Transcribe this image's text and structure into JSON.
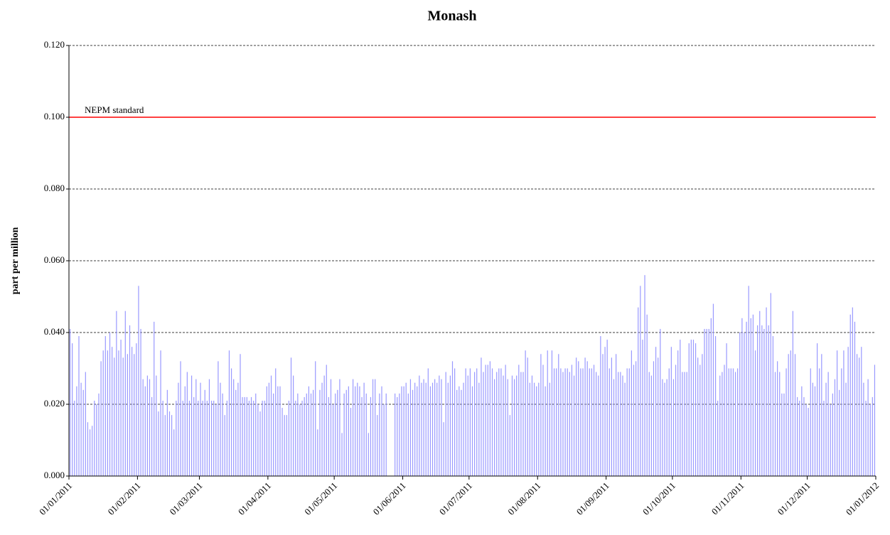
{
  "chart_data": {
    "type": "bar",
    "title": "Monash",
    "y_label": "part per million",
    "color": "#9999ff",
    "x": [
      "01/01/2011",
      "02/01/2011",
      "03/01/2011",
      "04/01/2011",
      "05/01/2011",
      "06/01/2011",
      "07/01/2011",
      "08/01/2011",
      "09/01/2011",
      "10/01/2011",
      "11/01/2011",
      "12/01/2011",
      "13/01/2011",
      "14/01/2011",
      "15/01/2011",
      "16/01/2011",
      "17/01/2011",
      "18/01/2011",
      "19/01/2011",
      "20/01/2011",
      "21/01/2011",
      "22/01/2011",
      "23/01/2011",
      "24/01/2011",
      "25/01/2011",
      "26/01/2011",
      "27/01/2011",
      "28/01/2011",
      "29/01/2011",
      "30/01/2011",
      "31/01/2011",
      "01/02/2011",
      "02/02/2011",
      "03/02/2011",
      "04/02/2011",
      "05/02/2011",
      "06/02/2011",
      "07/02/2011",
      "08/02/2011",
      "09/02/2011",
      "10/02/2011",
      "11/02/2011",
      "12/02/2011",
      "13/02/2011",
      "14/02/2011",
      "15/02/2011",
      "16/02/2011",
      "17/02/2011",
      "18/02/2011",
      "19/02/2011",
      "20/02/2011",
      "21/02/2011",
      "22/02/2011",
      "23/02/2011",
      "24/02/2011",
      "25/02/2011",
      "26/02/2011",
      "27/02/2011",
      "28/02/2011",
      "01/03/2011",
      "02/03/2011",
      "03/03/2011",
      "04/03/2011",
      "05/03/2011",
      "06/03/2011",
      "07/03/2011",
      "08/03/2011",
      "09/03/2011",
      "10/03/2011",
      "11/03/2011",
      "12/03/2011",
      "13/03/2011",
      "14/03/2011",
      "15/03/2011",
      "16/03/2011",
      "17/03/2011",
      "18/03/2011",
      "19/03/2011",
      "20/03/2011",
      "21/03/2011",
      "22/03/2011",
      "23/03/2011",
      "24/03/2011",
      "25/03/2011",
      "26/03/2011",
      "27/03/2011",
      "28/03/2011",
      "29/03/2011",
      "30/03/2011",
      "31/03/2011",
      "01/04/2011",
      "02/04/2011",
      "03/04/2011",
      "04/04/2011",
      "05/04/2011",
      "06/04/2011",
      "07/04/2011",
      "08/04/2011",
      "09/04/2011",
      "10/04/2011",
      "11/04/2011",
      "12/04/2011",
      "13/04/2011",
      "14/04/2011",
      "15/04/2011",
      "16/04/2011",
      "17/04/2011",
      "18/04/2011",
      "19/04/2011",
      "20/04/2011",
      "21/04/2011",
      "22/04/2011",
      "23/04/2011",
      "24/04/2011",
      "25/04/2011",
      "26/04/2011",
      "27/04/2011",
      "28/04/2011",
      "29/04/2011",
      "30/04/2011",
      "01/05/2011",
      "02/05/2011",
      "03/05/2011",
      "04/05/2011",
      "05/05/2011",
      "06/05/2011",
      "07/05/2011",
      "08/05/2011",
      "09/05/2011",
      "10/05/2011",
      "11/05/2011",
      "12/05/2011",
      "13/05/2011",
      "14/05/2011",
      "15/05/2011",
      "16/05/2011",
      "17/05/2011",
      "18/05/2011",
      "19/05/2011",
      "20/05/2011",
      "21/05/2011",
      "22/05/2011",
      "23/05/2011",
      "24/05/2011",
      "25/05/2011",
      "26/05/2011",
      "27/05/2011",
      "28/05/2011",
      "29/05/2011",
      "30/05/2011",
      "31/05/2011",
      "01/06/2011",
      "02/06/2011",
      "03/06/2011",
      "04/06/2011",
      "05/06/2011",
      "06/06/2011",
      "07/06/2011",
      "08/06/2011",
      "09/06/2011",
      "10/06/2011",
      "11/06/2011",
      "12/06/2011",
      "13/06/2011",
      "14/06/2011",
      "15/06/2011",
      "16/06/2011",
      "17/06/2011",
      "18/06/2011",
      "19/06/2011",
      "20/06/2011",
      "21/06/2011",
      "22/06/2011",
      "23/06/2011",
      "24/06/2011",
      "25/06/2011",
      "26/06/2011",
      "27/06/2011",
      "28/06/2011",
      "29/06/2011",
      "30/06/2011",
      "01/07/2011",
      "02/07/2011",
      "03/07/2011",
      "04/07/2011",
      "05/07/2011",
      "06/07/2011",
      "07/07/2011",
      "08/07/2011",
      "09/07/2011",
      "10/07/2011",
      "11/07/2011",
      "12/07/2011",
      "13/07/2011",
      "14/07/2011",
      "15/07/2011",
      "16/07/2011",
      "17/07/2011",
      "18/07/2011",
      "19/07/2011",
      "20/07/2011",
      "21/07/2011",
      "22/07/2011",
      "23/07/2011",
      "24/07/2011",
      "25/07/2011",
      "26/07/2011",
      "27/07/2011",
      "28/07/2011",
      "29/07/2011",
      "30/07/2011",
      "31/07/2011",
      "01/08/2011",
      "02/08/2011",
      "03/08/2011",
      "04/08/2011",
      "05/08/2011",
      "06/08/2011",
      "07/08/2011",
      "08/08/2011",
      "09/08/2011",
      "10/08/2011",
      "11/08/2011",
      "12/08/2011",
      "13/08/2011",
      "14/08/2011",
      "15/08/2011",
      "16/08/2011",
      "17/08/2011",
      "18/08/2011",
      "19/08/2011",
      "20/08/2011",
      "21/08/2011",
      "22/08/2011",
      "23/08/2011",
      "24/08/2011",
      "25/08/2011",
      "26/08/2011",
      "27/08/2011",
      "28/08/2011",
      "29/08/2011",
      "30/08/2011",
      "31/08/2011",
      "01/09/2011",
      "02/09/2011",
      "03/09/2011",
      "04/09/2011",
      "05/09/2011",
      "06/09/2011",
      "07/09/2011",
      "08/09/2011",
      "09/09/2011",
      "10/09/2011",
      "11/09/2011",
      "12/09/2011",
      "13/09/2011",
      "14/09/2011",
      "15/09/2011",
      "16/09/2011",
      "17/09/2011",
      "18/09/2011",
      "19/09/2011",
      "20/09/2011",
      "21/09/2011",
      "22/09/2011",
      "23/09/2011",
      "24/09/2011",
      "25/09/2011",
      "26/09/2011",
      "27/09/2011",
      "28/09/2011",
      "29/09/2011",
      "30/09/2011",
      "01/10/2011",
      "02/10/2011",
      "03/10/2011",
      "04/10/2011",
      "05/10/2011",
      "06/10/2011",
      "07/10/2011",
      "08/10/2011",
      "09/10/2011",
      "10/10/2011",
      "11/10/2011",
      "12/10/2011",
      "13/10/2011",
      "14/10/2011",
      "15/10/2011",
      "16/10/2011",
      "17/10/2011",
      "18/10/2011",
      "19/10/2011",
      "20/10/2011",
      "21/10/2011",
      "22/10/2011",
      "23/10/2011",
      "24/10/2011",
      "25/10/2011",
      "26/10/2011",
      "27/10/2011",
      "28/10/2011",
      "29/10/2011",
      "30/10/2011",
      "31/10/2011",
      "01/11/2011",
      "02/11/2011",
      "03/11/2011",
      "04/11/2011",
      "05/11/2011",
      "06/11/2011",
      "07/11/2011",
      "08/11/2011",
      "09/11/2011",
      "10/11/2011",
      "11/11/2011",
      "12/11/2011",
      "13/11/2011",
      "14/11/2011",
      "15/11/2011",
      "16/11/2011",
      "17/11/2011",
      "18/11/2011",
      "19/11/2011",
      "20/11/2011",
      "21/11/2011",
      "22/11/2011",
      "23/11/2011",
      "24/11/2011",
      "25/11/2011",
      "26/11/2011",
      "27/11/2011",
      "28/11/2011",
      "29/11/2011",
      "30/11/2011",
      "01/12/2011",
      "02/12/2011",
      "03/12/2011",
      "04/12/2011",
      "05/12/2011",
      "06/12/2011",
      "07/12/2011",
      "08/12/2011",
      "09/12/2011",
      "10/12/2011",
      "11/12/2011",
      "12/12/2011",
      "13/12/2011",
      "14/12/2011",
      "15/12/2011",
      "16/12/2011",
      "17/12/2011",
      "18/12/2011",
      "19/12/2011",
      "20/12/2011",
      "21/12/2011",
      "22/12/2011",
      "23/12/2011",
      "24/12/2011",
      "25/12/2011",
      "26/12/2011",
      "27/12/2011",
      "28/12/2011",
      "29/12/2011",
      "30/12/2011",
      "31/12/2011"
    ],
    "values": [
      0.041,
      0.037,
      0.021,
      0.025,
      0.039,
      0.026,
      0.024,
      0.029,
      0.015,
      0.013,
      0.014,
      0.021,
      0.02,
      0.023,
      0.032,
      0.035,
      0.039,
      0.035,
      0.04,
      0.036,
      0.033,
      0.046,
      0.035,
      0.038,
      0.033,
      0.046,
      0.034,
      0.042,
      0.036,
      0.034,
      0.037,
      0.053,
      0.041,
      0.027,
      0.025,
      0.028,
      0.027,
      0.022,
      0.043,
      0.028,
      0.018,
      0.035,
      0.021,
      0.017,
      0.024,
      0.018,
      0.017,
      0.013,
      0.021,
      0.026,
      0.032,
      0.021,
      0.025,
      0.029,
      0.021,
      0.028,
      0.022,
      0.027,
      0.021,
      0.026,
      0.021,
      0.024,
      0.021,
      0.027,
      0.021,
      0.021,
      0.02,
      0.032,
      0.026,
      0.023,
      0.017,
      0.021,
      0.035,
      0.03,
      0.027,
      0.024,
      0.026,
      0.034,
      0.022,
      0.022,
      0.022,
      0.021,
      0.022,
      0.021,
      0.023,
      0.02,
      0.018,
      0.021,
      0.021,
      0.025,
      0.026,
      0.028,
      0.023,
      0.03,
      0.025,
      0.025,
      0.019,
      0.017,
      0.017,
      0.021,
      0.033,
      0.028,
      0.021,
      0.023,
      0.02,
      0.021,
      0.022,
      0.023,
      0.025,
      0.023,
      0.024,
      0.032,
      0.013,
      0.024,
      0.026,
      0.028,
      0.031,
      0.022,
      0.027,
      0.02,
      0.023,
      0.024,
      0.027,
      0.012,
      0.023,
      0.024,
      0.025,
      0.019,
      0.027,
      0.025,
      0.026,
      0.025,
      0.022,
      0.026,
      0.023,
      0.012,
      0.022,
      0.027,
      0.027,
      0.017,
      0.023,
      0.025,
      0.02,
      0.023,
      null,
      null,
      null,
      0.023,
      0.022,
      0.023,
      0.025,
      0.025,
      0.026,
      0.023,
      0.027,
      0.024,
      0.026,
      0.025,
      0.028,
      0.026,
      0.027,
      0.026,
      0.03,
      0.025,
      0.026,
      0.027,
      0.026,
      0.028,
      0.027,
      0.015,
      0.029,
      0.026,
      0.028,
      0.032,
      0.03,
      0.024,
      0.025,
      0.024,
      0.026,
      0.03,
      0.028,
      0.03,
      0.025,
      0.029,
      0.03,
      0.026,
      0.033,
      0.029,
      0.031,
      0.031,
      0.032,
      0.03,
      0.027,
      0.029,
      0.03,
      0.03,
      0.028,
      0.031,
      0.027,
      0.017,
      0.028,
      0.027,
      0.028,
      0.031,
      0.029,
      0.029,
      0.035,
      0.033,
      0.026,
      0.028,
      0.026,
      0.025,
      0.026,
      0.034,
      0.031,
      0.025,
      0.035,
      0.026,
      0.035,
      0.03,
      0.03,
      0.034,
      0.03,
      0.029,
      0.03,
      0.03,
      0.029,
      0.031,
      0.028,
      0.033,
      0.032,
      0.03,
      0.03,
      0.033,
      0.032,
      0.03,
      0.03,
      0.031,
      0.029,
      0.028,
      0.039,
      0.034,
      0.036,
      0.038,
      0.03,
      0.033,
      0.027,
      0.034,
      0.029,
      0.029,
      0.028,
      0.026,
      0.03,
      0.03,
      0.035,
      0.031,
      0.032,
      0.047,
      0.053,
      0.038,
      0.056,
      0.045,
      0.029,
      0.028,
      0.032,
      0.036,
      0.033,
      0.041,
      0.027,
      0.026,
      0.027,
      0.03,
      0.036,
      0.027,
      0.031,
      0.035,
      0.038,
      0.029,
      0.029,
      0.029,
      0.037,
      0.038,
      0.038,
      0.037,
      0.033,
      0.031,
      0.034,
      0.041,
      0.041,
      0.041,
      0.044,
      0.048,
      0.039,
      0.021,
      0.028,
      0.029,
      0.031,
      0.037,
      0.03,
      0.03,
      0.03,
      0.029,
      0.03,
      0.04,
      0.044,
      0.04,
      0.043,
      0.053,
      0.044,
      0.045,
      0.035,
      0.042,
      0.046,
      0.042,
      0.041,
      0.047,
      0.042,
      0.051,
      0.039,
      0.029,
      0.032,
      0.029,
      0.023,
      0.023,
      0.03,
      0.034,
      0.035,
      0.046,
      0.034,
      0.022,
      0.021,
      0.025,
      0.022,
      0.02,
      0.019,
      0.03,
      0.026,
      0.025,
      0.037,
      0.03,
      0.034,
      0.021,
      0.026,
      0.029,
      0.02,
      0.023,
      0.027,
      0.035,
      0.024,
      0.03,
      0.035,
      0.026,
      0.036,
      0.045,
      0.047,
      0.043,
      0.034,
      0.033,
      0.036,
      0.026,
      0.021,
      0.027,
      0.02,
      0.022,
      0.031
    ],
    "xlim": [
      "01/01/2011",
      "01/01/2012"
    ],
    "xticks": [
      "01/01/2011",
      "01/02/2011",
      "01/03/2011",
      "01/04/2011",
      "01/05/2011",
      "01/06/2011",
      "01/07/2011",
      "01/08/2011",
      "01/09/2011",
      "01/10/2011",
      "01/11/2011",
      "01/12/2011",
      "01/01/2012"
    ],
    "ylim": [
      0,
      0.12
    ],
    "yticks": [
      {
        "value": 0,
        "label": "0.000"
      },
      {
        "value": 0.02,
        "label": "0.020"
      },
      {
        "value": 0.04,
        "label": "0.040"
      },
      {
        "value": 0.06,
        "label": "0.060"
      },
      {
        "value": 0.08,
        "label": "0.080"
      },
      {
        "value": 0.1,
        "label": "0.100"
      },
      {
        "value": 0.12,
        "label": "0.120"
      }
    ],
    "grid": true,
    "reference_line": {
      "value": 0.1,
      "label": "NEPM standard",
      "color": "#ff0000"
    }
  }
}
